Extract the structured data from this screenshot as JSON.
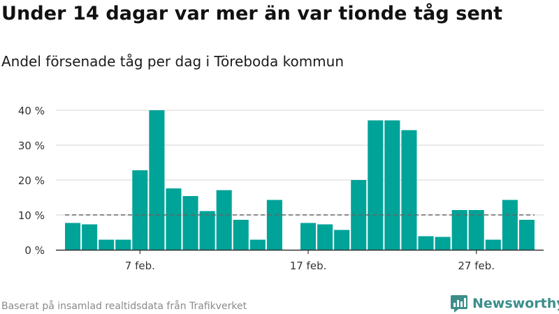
{
  "header": {
    "title": "Under 14 dagar var mer än var tionde tåg sent",
    "subtitle": "Andel försenade tåg per dag i Töreboda kommun"
  },
  "footer": {
    "source": "Baserat på insamlad realtidsdata från Trafikverket",
    "brand": "Newsworthy",
    "brand_icon": "newsworthy-logo-icon"
  },
  "colors": {
    "bar": "#00a398",
    "grid": "#dddddd",
    "axis": "#333333",
    "reference": "#666666",
    "brand": "#3b8e8a"
  },
  "chart_data": {
    "type": "bar",
    "title": "Under 14 dagar var mer än var tionde tåg sent",
    "subtitle": "Andel försenade tåg per dag i Töreboda kommun",
    "x": [
      "2019-02-03",
      "2019-02-04",
      "2019-02-05",
      "2019-02-06",
      "2019-02-07",
      "2019-02-08",
      "2019-02-09",
      "2019-02-10",
      "2019-02-11",
      "2019-02-12",
      "2019-02-13",
      "2019-02-14",
      "2019-02-15",
      "2019-02-17",
      "2019-02-18",
      "2019-02-19",
      "2019-02-20",
      "2019-02-21",
      "2019-02-22",
      "2019-02-23",
      "2019-02-24",
      "2019-02-25",
      "2019-02-26",
      "2019-02-27",
      "2019-02-28",
      "2019-03-01",
      "2019-03-02"
    ],
    "values": [
      7.7,
      7.3,
      2.9,
      2.9,
      22.8,
      40.0,
      17.6,
      15.4,
      11.1,
      17.1,
      8.6,
      2.9,
      14.3,
      7.7,
      7.3,
      5.7,
      20.0,
      37.1,
      37.1,
      34.3,
      3.9,
      3.7,
      11.4,
      11.4,
      2.9,
      14.3,
      8.6
    ],
    "unit": "%",
    "xlim": [
      "2019-02-02",
      "2019-03-03"
    ],
    "ylim": [
      0,
      40
    ],
    "yticks": [
      0,
      10,
      20,
      30,
      40
    ],
    "ytick_labels": [
      "0 %",
      "10 %",
      "20 %",
      "30 %",
      "40 %"
    ],
    "xticks": [
      "2019-02-07",
      "2019-02-17",
      "2019-02-27"
    ],
    "xtick_labels": [
      "7 feb.",
      "17 feb.",
      "27 feb."
    ],
    "reference_line": {
      "y": 10,
      "from": "2019-02-03",
      "to": "2019-03-02",
      "style": "dashed"
    },
    "grid": true,
    "legend": "none"
  }
}
